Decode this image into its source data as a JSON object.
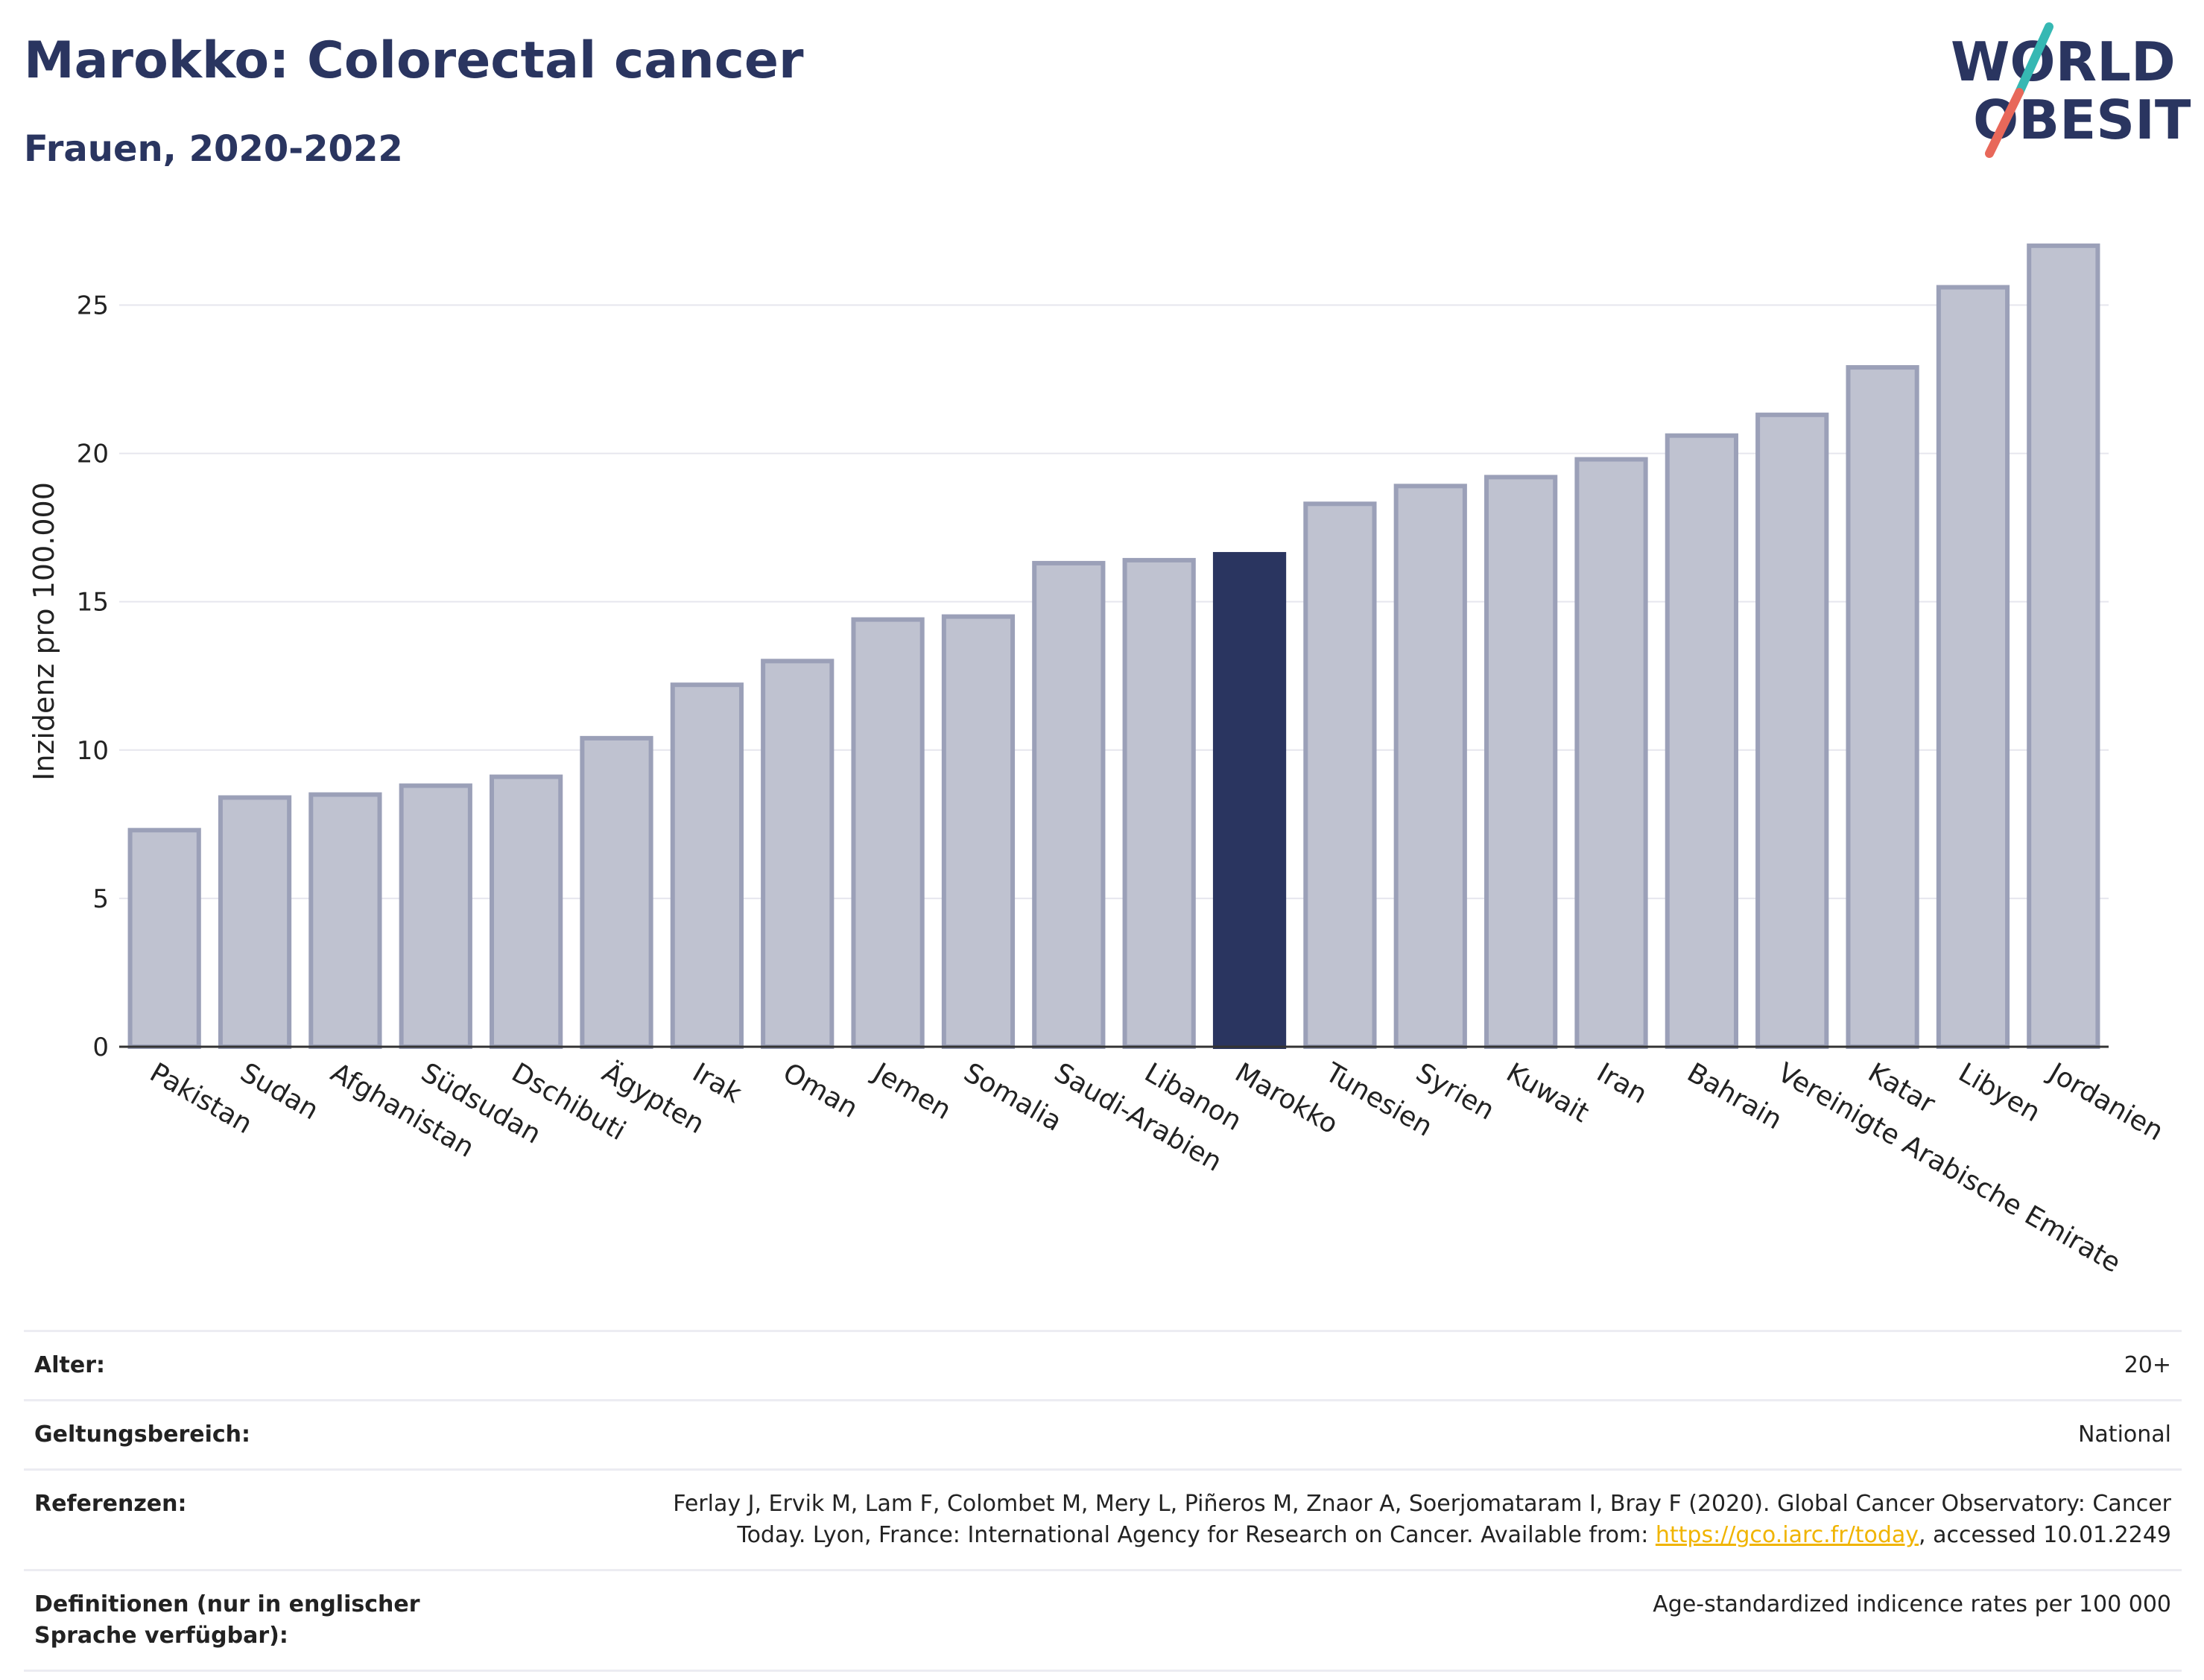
{
  "header": {
    "title": "Marokko: Colorectal cancer",
    "subtitle": "Frauen, 2020-2022"
  },
  "logo": {
    "line1": "WORLD",
    "line2": "OBESITY",
    "slash_colors": [
      "#36b8b3",
      "#e8685a"
    ],
    "text_color": "#2a3560"
  },
  "colors": {
    "bar_default": "#bfc2d0",
    "bar_border": "#9ba0b8",
    "bar_highlight": "#2a3560",
    "grid": "#e6e6ee",
    "axis": "#333333"
  },
  "chart_data": {
    "type": "bar",
    "title": "Marokko: Colorectal cancer",
    "subtitle": "Frauen, 2020-2022",
    "xlabel": "",
    "ylabel": "Inzidenz pro 100.000",
    "ylim": [
      0,
      28
    ],
    "yticks": [
      0,
      5,
      10,
      15,
      20,
      25
    ],
    "grid": true,
    "highlight": "Marokko",
    "categories": [
      "Pakistan",
      "Sudan",
      "Afghanistan",
      "Südsudan",
      "Dschibuti",
      "Ägypten",
      "Irak",
      "Oman",
      "Jemen",
      "Somalia",
      "Saudi-Arabien",
      "Libanon",
      "Marokko",
      "Tunesien",
      "Syrien",
      "Kuwait",
      "Iran",
      "Bahrain",
      "Vereinigte Arabische Emirate",
      "Katar",
      "Libyen",
      "Jordanien"
    ],
    "values": [
      7.3,
      8.4,
      8.5,
      8.8,
      9.1,
      10.4,
      12.2,
      13.0,
      14.4,
      14.5,
      16.3,
      16.4,
      16.6,
      18.3,
      18.9,
      19.2,
      19.8,
      20.6,
      21.3,
      22.9,
      25.6,
      27.0
    ]
  },
  "info": {
    "rows": [
      {
        "key": "Alter:",
        "value": "20+"
      },
      {
        "key": "Geltungsbereich:",
        "value": "National"
      }
    ],
    "references": {
      "key": "Referenzen:",
      "line1": "Ferlay J, Ervik M, Lam F, Colombet M, Mery L, Piñeros M, Znaor A, Soerjomataram I, Bray F (2020). Global Cancer Observatory: Cancer",
      "line2_before": "Today. Lyon, France: International Agency for Research on Cancer. Available from: ",
      "link": "https://gco.iarc.fr/today",
      "line2_after": ", accessed 10.01.2249"
    },
    "definitions": {
      "key": "Definitionen (nur in englischer Sprache verfügbar):",
      "value": "Age-standardized indicence rates per 100 000"
    }
  }
}
